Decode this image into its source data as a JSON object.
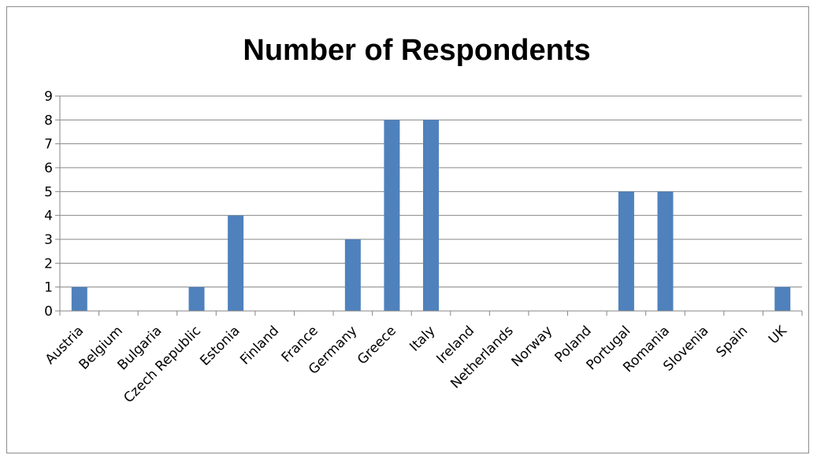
{
  "chart_data": {
    "type": "bar",
    "title": "Number of Respondents",
    "xlabel": "",
    "ylabel": "",
    "categories": [
      "Austria",
      "Belgium",
      "Bulgaria",
      "Czech Republic",
      "Estonia",
      "Finland",
      "France",
      "Germany",
      "Greece",
      "Italy",
      "Ireland",
      "Netherlands",
      "Norway",
      "Poland",
      "Portugal",
      "Romania",
      "Slovenia",
      "Spain",
      "UK"
    ],
    "values": [
      1,
      0,
      0,
      1,
      4,
      0,
      0,
      3,
      8,
      8,
      0,
      0,
      0,
      0,
      5,
      5,
      0,
      0,
      1
    ],
    "ylim": [
      0,
      9
    ],
    "yticks": [
      "0",
      "1",
      "2",
      "3",
      "4",
      "5",
      "6",
      "7",
      "8",
      "9"
    ],
    "grid": true,
    "legend": "none",
    "bar_color": "#4f81bd"
  }
}
